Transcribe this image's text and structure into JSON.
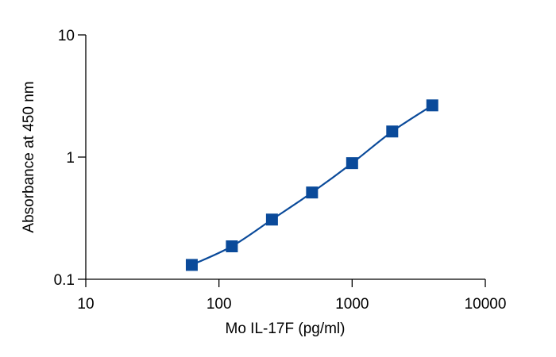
{
  "chart_data": {
    "type": "scatter",
    "title": "",
    "xlabel": "Mo IL-17F (pg/ml)",
    "ylabel": "Absorbance at 450 nm",
    "xscale": "log",
    "yscale": "log",
    "xlim": [
      10,
      10000
    ],
    "ylim": [
      0.1,
      10
    ],
    "xticks": [
      10,
      100,
      1000,
      10000
    ],
    "xtick_labels": [
      "10",
      "100",
      "1000",
      "10000"
    ],
    "yticks": [
      0.1,
      1,
      10
    ],
    "ytick_labels": [
      "0.1",
      "1",
      "10"
    ],
    "grid": false,
    "legend": "none",
    "series": [
      {
        "x": [
          62.5,
          125,
          250,
          500,
          1000,
          2000,
          4000
        ],
        "y": [
          0.131,
          0.186,
          0.308,
          0.513,
          0.892,
          1.62,
          2.65
        ],
        "marker": "square",
        "line": "smooth",
        "color": "#0a4a9a"
      }
    ]
  }
}
